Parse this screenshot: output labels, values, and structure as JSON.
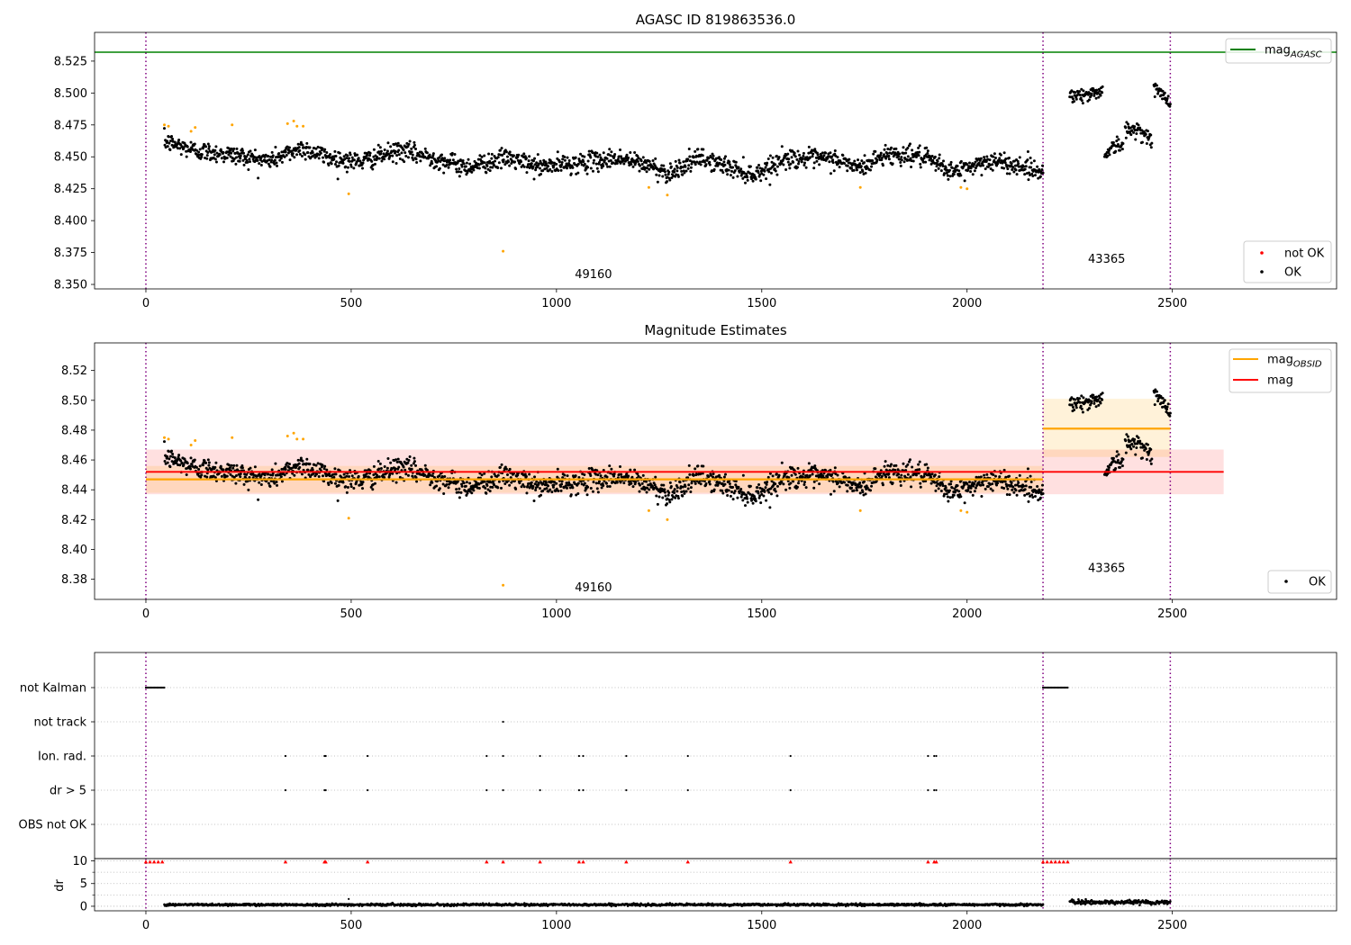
{
  "chart_data": [
    {
      "type": "scatter",
      "title": "AGASC ID 819863536.0",
      "xlim": [
        -125,
        2900
      ],
      "ylim": [
        8.3465,
        8.5475
      ],
      "x_ticks": [
        0,
        500,
        1000,
        1500,
        2000,
        2500
      ],
      "x_tick_labels": [
        "0",
        "500",
        "1000",
        "1500",
        "2000",
        "2500"
      ],
      "y_ticks": [
        8.35,
        8.375,
        8.4,
        8.425,
        8.45,
        8.475,
        8.5,
        8.525
      ],
      "y_tick_labels": [
        "8.350",
        "8.375",
        "8.400",
        "8.425",
        "8.450",
        "8.475",
        "8.500",
        "8.525"
      ],
      "obsid_boundaries": [
        0,
        2185,
        2495
      ],
      "obsid_labels": [
        {
          "text": "49160",
          "x": 1090,
          "y": 8.355
        },
        {
          "text": "43365",
          "x": 2340,
          "y": 8.367
        }
      ],
      "mag_agasc": 8.532,
      "legend_upper": {
        "location": "upper right",
        "entries": [
          {
            "label": "mag",
            "sub": "AGASC",
            "color": "#008000"
          }
        ]
      },
      "legend_lower": {
        "location": "lower right",
        "entries": [
          {
            "label": "not OK",
            "color": "#ff0000"
          },
          {
            "label": "OK",
            "color": "#000000"
          }
        ]
      },
      "series": [
        {
          "name": "OK",
          "color": "#000000",
          "segments": [
            {
              "x_start": 45,
              "x_end": 2185,
              "baseline": [
                [
                  45,
                  8.462
                ],
                [
                  120,
                  8.455
                ],
                [
                  200,
                  8.452
                ],
                [
                  300,
                  8.447
                ],
                [
                  380,
                  8.457
                ],
                [
                  450,
                  8.449
                ],
                [
                  520,
                  8.446
                ],
                [
                  620,
                  8.455
                ],
                [
                  700,
                  8.449
                ],
                [
                  780,
                  8.442
                ],
                [
                  880,
                  8.449
                ],
                [
                  960,
                  8.442
                ],
                [
                  1050,
                  8.445
                ],
                [
                  1150,
                  8.449
                ],
                [
                  1230,
                  8.443
                ],
                [
                  1270,
                  8.437
                ],
                [
                  1350,
                  8.449
                ],
                [
                  1430,
                  8.441
                ],
                [
                  1480,
                  8.436
                ],
                [
                  1560,
                  8.449
                ],
                [
                  1680,
                  8.448
                ],
                [
                  1740,
                  8.441
                ],
                [
                  1800,
                  8.452
                ],
                [
                  1880,
                  8.451
                ],
                [
                  1970,
                  8.438
                ],
                [
                  2050,
                  8.447
                ],
                [
                  2130,
                  8.443
                ],
                [
                  2185,
                  8.438
                ]
              ],
              "noise": 0.0062
            },
            {
              "x_start": 2250,
              "x_end": 2330,
              "baseline": [
                [
                  2250,
                  8.499
                ],
                [
                  2290,
                  8.498
                ],
                [
                  2330,
                  8.502
                ]
              ],
              "noise": 0.0045
            },
            {
              "x_start": 2335,
              "x_end": 2380,
              "baseline": [
                [
                  2335,
                  8.452
                ],
                [
                  2360,
                  8.459
                ],
                [
                  2380,
                  8.459
                ]
              ],
              "noise": 0.005
            },
            {
              "x_start": 2385,
              "x_end": 2450,
              "baseline": [
                [
                  2385,
                  8.47
                ],
                [
                  2420,
                  8.472
                ],
                [
                  2450,
                  8.462
                ]
              ],
              "noise": 0.005
            },
            {
              "x_start": 2455,
              "x_end": 2495,
              "baseline": [
                [
                  2455,
                  8.505
                ],
                [
                  2475,
                  8.498
                ],
                [
                  2495,
                  8.492
                ]
              ],
              "noise": 0.005
            }
          ]
        },
        {
          "name": "orange points",
          "color": "#ffa500",
          "points": [
            [
              45,
              8.475
            ],
            [
              55,
              8.474
            ],
            [
              110,
              8.47
            ],
            [
              120,
              8.473
            ],
            [
              210,
              8.475
            ],
            [
              345,
              8.476
            ],
            [
              360,
              8.478
            ],
            [
              368,
              8.474
            ],
            [
              383,
              8.474
            ],
            [
              494,
              8.421
            ],
            [
              870,
              8.376
            ],
            [
              1225,
              8.426
            ],
            [
              1270,
              8.42
            ],
            [
              1740,
              8.426
            ],
            [
              1985,
              8.426
            ],
            [
              2000,
              8.425
            ]
          ]
        }
      ]
    },
    {
      "type": "scatter",
      "title": "Magnitude Estimates",
      "xlim": [
        -125,
        2900
      ],
      "ylim": [
        8.3665,
        8.5385
      ],
      "x_ticks": [
        0,
        500,
        1000,
        1500,
        2000,
        2500
      ],
      "x_tick_labels": [
        "0",
        "500",
        "1000",
        "1500",
        "2000",
        "2500"
      ],
      "y_ticks": [
        8.38,
        8.4,
        8.42,
        8.44,
        8.46,
        8.48,
        8.5,
        8.52
      ],
      "y_tick_labels": [
        "8.38",
        "8.40",
        "8.42",
        "8.44",
        "8.46",
        "8.48",
        "8.50",
        "8.52"
      ],
      "obsid_boundaries": [
        0,
        2185,
        2495
      ],
      "obsid_labels": [
        {
          "text": "49160",
          "x": 1090,
          "y": 8.372
        },
        {
          "text": "43365",
          "x": 2340,
          "y": 8.385
        }
      ],
      "mag": {
        "value": 8.452,
        "band": [
          8.437,
          8.467
        ],
        "x_range": [
          0,
          2625
        ],
        "color": "#ff0000"
      },
      "mag_obsid": [
        {
          "x_range": [
            0,
            2185
          ],
          "value": 8.447,
          "band": [
            8.438,
            8.456
          ]
        },
        {
          "x_range": [
            2185,
            2495
          ],
          "value": 8.481,
          "band": [
            8.462,
            8.501
          ]
        }
      ],
      "legend_upper": {
        "location": "upper right",
        "entries": [
          {
            "label": "mag",
            "sub": "OBSID",
            "color": "#ffa500"
          },
          {
            "label": "mag",
            "color": "#ff0000"
          }
        ]
      },
      "legend_lower": {
        "location": "lower right",
        "entries": [
          {
            "label": "OK",
            "color": "#000000"
          }
        ]
      }
    },
    {
      "type": "scatter",
      "title": "",
      "xlim": [
        -125,
        2900
      ],
      "x_ticks": [
        0,
        500,
        1000,
        1500,
        2000,
        2500
      ],
      "x_tick_labels": [
        "0",
        "500",
        "1000",
        "1500",
        "2000",
        "2500"
      ],
      "obsid_boundaries": [
        0,
        2185,
        2495
      ],
      "flag_rows": [
        "not Kalman",
        "not track",
        "Ion. rad.",
        "dr > 5",
        "OBS not OK"
      ],
      "flags": {
        "not Kalman": [
          {
            "range": [
              0,
              45
            ]
          },
          {
            "range": [
              2185,
              2245
            ]
          }
        ],
        "not track": [
          {
            "x": [
              870
            ]
          }
        ],
        "Ion. rad.": [
          {
            "x": [
              340,
              435,
              438,
              540,
              830,
              870,
              960,
              1055,
              1065,
              1170,
              1320,
              1570,
              1905,
              1920,
              1925
            ]
          }
        ],
        "dr > 5": [
          {
            "x": [
              340,
              435,
              438,
              540,
              830,
              870,
              960,
              1055,
              1065,
              1170,
              1320,
              1570,
              1905,
              1920,
              1925
            ]
          }
        ],
        "OBS not OK": []
      }
    },
    {
      "type": "scatter",
      "title": "",
      "ylabel": "dr",
      "xlim": [
        -125,
        2900
      ],
      "ylim": [
        -1,
        10.5
      ],
      "y_ticks": [
        0,
        5,
        10
      ],
      "y_tick_labels": [
        "0",
        "5",
        "10"
      ],
      "x_ticks": [
        0,
        500,
        1000,
        1500,
        2000,
        2500
      ],
      "x_tick_labels": [
        "0",
        "500",
        "1000",
        "1500",
        "2000",
        "2500"
      ],
      "obsid_boundaries": [
        0,
        2185,
        2495
      ],
      "dr_ok": [
        {
          "x_start": 45,
          "x_end": 2185,
          "level": 0.35,
          "noise": 0.25
        },
        {
          "x_start": 2250,
          "x_end": 2495,
          "level": 0.9,
          "noise": 0.45
        }
      ],
      "dr_outliers": [
        [
          494,
          1.6
        ]
      ],
      "dr_clipped": {
        "value": 10,
        "color": "#ff0000",
        "x": [
          0,
          10,
          20,
          30,
          40,
          340,
          435,
          438,
          540,
          830,
          870,
          960,
          1055,
          1065,
          1170,
          1320,
          1570,
          1905,
          1920,
          1925,
          2185,
          2195,
          2205,
          2215,
          2225,
          2235,
          2245
        ]
      }
    }
  ]
}
